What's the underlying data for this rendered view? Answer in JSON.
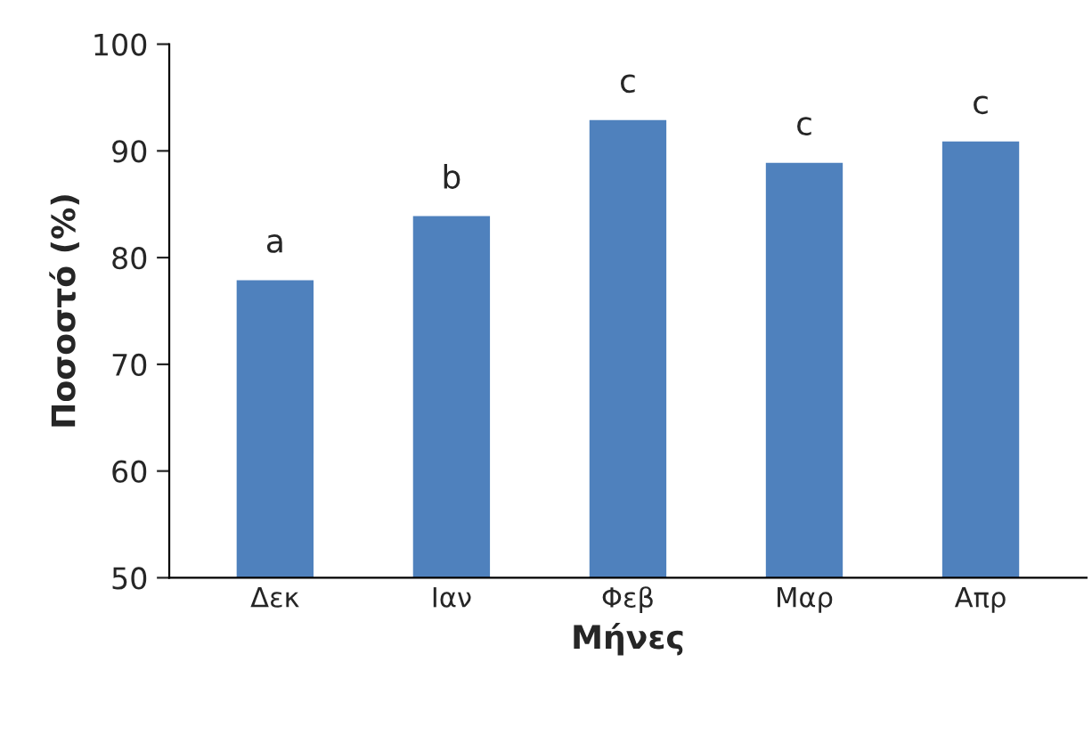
{
  "chart_data": {
    "type": "bar",
    "xlabel": "Μήνες",
    "ylabel": "Ποσοστό (%)",
    "categories": [
      "Δεκ",
      "Ιαν",
      "Φεβ",
      "Μαρ",
      "Απρ"
    ],
    "values": [
      78,
      84,
      93,
      89,
      91
    ],
    "color": "#4f81bd",
    "ylim": [
      50,
      100
    ],
    "yticks": [
      50,
      60,
      70,
      80,
      90,
      100
    ],
    "grid": false,
    "legend": false,
    "annotations": [
      {
        "text": "a",
        "x": "Δεκ",
        "y": 78
      },
      {
        "text": "b",
        "x": "Ιαν",
        "y": 84
      },
      {
        "text": "c",
        "x": "Φεβ",
        "y": 93
      },
      {
        "text": "c",
        "x": "Μαρ",
        "y": 89
      },
      {
        "text": "c",
        "x": "Απρ",
        "y": 91
      }
    ]
  }
}
